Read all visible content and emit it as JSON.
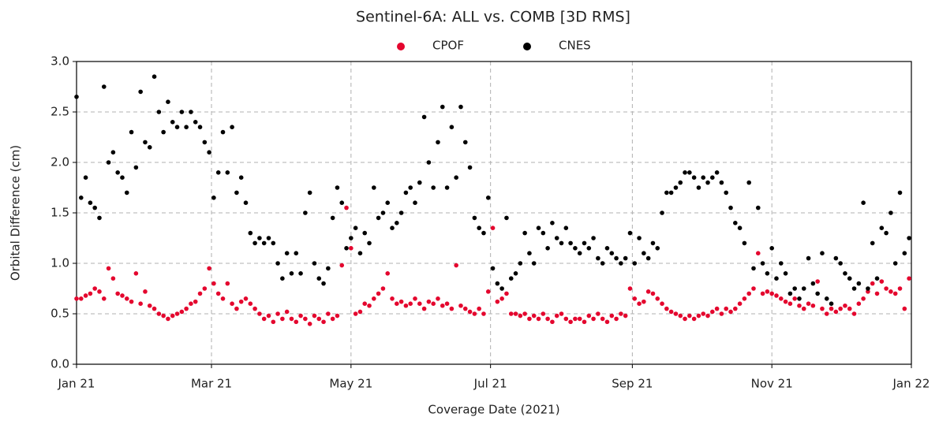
{
  "chart_data": {
    "type": "scatter",
    "title": "Sentinel-6A: ALL vs. COMB [3D RMS]",
    "xlabel": "Coverage Date (2021)",
    "ylabel": "Orbital Difference (cm)",
    "xlim": [
      0,
      365
    ],
    "ylim": [
      0,
      3
    ],
    "xticks": [
      {
        "value": 0,
        "label": "Jan 21"
      },
      {
        "value": 59,
        "label": "Mar 21"
      },
      {
        "value": 120,
        "label": "May 21"
      },
      {
        "value": 181,
        "label": "Jul 21"
      },
      {
        "value": 243,
        "label": "Sep 21"
      },
      {
        "value": 304,
        "label": "Nov 21"
      },
      {
        "value": 365,
        "label": "Jan 22"
      }
    ],
    "yticks": [
      {
        "value": 0,
        "label": "0.0"
      },
      0.5,
      {
        "value": 1,
        "label": "1.0"
      },
      1.5,
      {
        "value": 2,
        "label": "2.0"
      },
      2.5,
      {
        "value": 3,
        "label": "3.0"
      }
    ],
    "grid": true,
    "legend": "top",
    "x": [
      0,
      2,
      4,
      6,
      8,
      10,
      12,
      14,
      16,
      18,
      20,
      22,
      24,
      26,
      28,
      30,
      32,
      34,
      36,
      38,
      40,
      42,
      44,
      46,
      48,
      50,
      52,
      54,
      56,
      58,
      60,
      62,
      64,
      66,
      68,
      70,
      72,
      74,
      76,
      78,
      80,
      82,
      84,
      86,
      88,
      90,
      92,
      94,
      96,
      98,
      100,
      102,
      104,
      106,
      108,
      110,
      112,
      114,
      116,
      118,
      120,
      122,
      124,
      126,
      128,
      130,
      132,
      134,
      136,
      138,
      140,
      142,
      144,
      146,
      148,
      150,
      152,
      154,
      156,
      158,
      160,
      162,
      164,
      166,
      168,
      170,
      172,
      174,
      176,
      178,
      180,
      182,
      184,
      186,
      188,
      190,
      192,
      194,
      196,
      198,
      200,
      202,
      204,
      206,
      208,
      210,
      212,
      214,
      216,
      218,
      220,
      222,
      224,
      226,
      228,
      230,
      232,
      234,
      236,
      238,
      240,
      242,
      244,
      246,
      248,
      250,
      252,
      254,
      256,
      258,
      260,
      262,
      264,
      266,
      268,
      270,
      272,
      274,
      276,
      278,
      280,
      282,
      284,
      286,
      288,
      290,
      292,
      294,
      296,
      298,
      300,
      302,
      304,
      306,
      308,
      310,
      312,
      314,
      316,
      318,
      320,
      322,
      324,
      326,
      328,
      330,
      332,
      334,
      336,
      338,
      340,
      342,
      344,
      346,
      348,
      350,
      352,
      354,
      356,
      358,
      360,
      362,
      364
    ],
    "series": [
      {
        "name": "CPOF",
        "color": "#e4062e",
        "values": [
          0.65,
          0.65,
          0.68,
          0.7,
          0.75,
          0.72,
          0.65,
          0.95,
          0.85,
          0.7,
          0.68,
          0.65,
          0.62,
          0.9,
          0.6,
          0.72,
          0.58,
          0.55,
          0.5,
          0.48,
          0.45,
          0.48,
          0.5,
          0.52,
          0.55,
          0.6,
          0.62,
          0.7,
          0.75,
          0.95,
          0.8,
          0.7,
          0.65,
          0.8,
          0.6,
          0.55,
          0.62,
          0.65,
          0.6,
          0.55,
          0.5,
          0.45,
          0.48,
          0.42,
          0.5,
          0.45,
          0.52,
          0.45,
          0.42,
          0.48,
          0.45,
          0.4,
          0.48,
          0.45,
          0.42,
          0.5,
          0.45,
          0.48,
          0.98,
          1.55,
          1.15,
          0.5,
          0.52,
          0.6,
          0.58,
          0.65,
          0.7,
          0.75,
          0.9,
          0.65,
          0.6,
          0.62,
          0.58,
          0.6,
          0.65,
          0.6,
          0.55,
          0.62,
          0.6,
          0.65,
          0.58,
          0.6,
          0.55,
          0.98,
          0.58,
          0.55,
          0.52,
          0.5,
          0.55,
          0.5,
          0.72,
          1.35,
          0.62,
          0.65,
          0.7,
          0.5,
          0.5,
          0.48,
          0.5,
          0.45,
          0.48,
          0.45,
          0.5,
          0.45,
          0.42,
          0.48,
          0.5,
          0.45,
          0.42,
          0.45,
          0.45,
          0.42,
          0.48,
          0.45,
          0.5,
          0.45,
          0.42,
          0.48,
          0.45,
          0.5,
          0.48,
          0.75,
          0.65,
          0.6,
          0.62,
          0.72,
          0.7,
          0.65,
          0.6,
          0.55,
          0.52,
          0.5,
          0.48,
          0.45,
          0.48,
          0.45,
          0.48,
          0.5,
          0.48,
          0.52,
          0.55,
          0.5,
          0.55,
          0.52,
          0.55,
          0.6,
          0.65,
          0.7,
          0.75,
          1.1,
          0.7,
          0.72,
          0.7,
          0.68,
          0.65,
          0.62,
          0.6,
          0.65,
          0.58,
          0.55,
          0.6,
          0.58,
          0.82,
          0.55,
          0.5,
          0.55,
          0.52,
          0.55,
          0.58,
          0.55,
          0.5,
          0.6,
          0.65,
          0.72,
          0.8,
          0.7,
          0.82,
          0.75,
          0.72,
          0.7,
          0.75,
          0.55,
          0.85
        ]
      },
      {
        "name": "CNES",
        "color": "#000000",
        "values": [
          2.65,
          1.65,
          1.85,
          1.6,
          1.55,
          1.45,
          2.75,
          2.0,
          2.1,
          1.9,
          1.85,
          1.7,
          2.3,
          1.95,
          2.7,
          2.2,
          2.15,
          2.85,
          2.5,
          2.3,
          2.6,
          2.4,
          2.35,
          2.5,
          2.35,
          2.5,
          2.4,
          2.35,
          2.2,
          2.1,
          1.65,
          1.9,
          2.3,
          1.9,
          2.35,
          1.7,
          1.85,
          1.6,
          1.3,
          1.2,
          1.25,
          1.2,
          1.25,
          1.2,
          1.0,
          0.85,
          1.1,
          0.9,
          1.1,
          0.9,
          1.5,
          1.7,
          1.0,
          0.85,
          0.8,
          0.95,
          1.45,
          1.75,
          1.6,
          1.15,
          1.25,
          1.35,
          1.1,
          1.3,
          1.2,
          1.75,
          1.45,
          1.5,
          1.6,
          1.35,
          1.4,
          1.5,
          1.7,
          1.75,
          1.6,
          1.8,
          2.45,
          2.0,
          1.75,
          2.2,
          2.55,
          1.75,
          2.35,
          1.85,
          2.55,
          2.2,
          1.95,
          1.45,
          1.35,
          1.3,
          1.65,
          0.95,
          0.8,
          0.75,
          1.45,
          0.85,
          0.9,
          1.0,
          1.3,
          1.1,
          1.0,
          1.35,
          1.3,
          1.15,
          1.4,
          1.25,
          1.2,
          1.35,
          1.2,
          1.15,
          1.1,
          1.2,
          1.15,
          1.25,
          1.05,
          1.0,
          1.15,
          1.1,
          1.05,
          1.0,
          1.05,
          1.3,
          1.0,
          1.25,
          1.1,
          1.05,
          1.2,
          1.15,
          1.5,
          1.7,
          1.7,
          1.75,
          1.8,
          1.9,
          1.9,
          1.85,
          1.75,
          1.85,
          1.8,
          1.85,
          1.9,
          1.8,
          1.7,
          1.55,
          1.4,
          1.35,
          1.2,
          1.8,
          0.95,
          1.55,
          1.0,
          0.9,
          1.15,
          0.85,
          1.0,
          0.9,
          0.7,
          0.75,
          0.65,
          0.75,
          1.05,
          0.8,
          0.7,
          1.1,
          0.65,
          0.6,
          1.05,
          1.0,
          0.9,
          0.85,
          0.75,
          0.8,
          1.6,
          0.75,
          1.2,
          0.85,
          1.35,
          1.3,
          1.5,
          1.0,
          1.7,
          1.1,
          1.25
        ]
      }
    ]
  }
}
